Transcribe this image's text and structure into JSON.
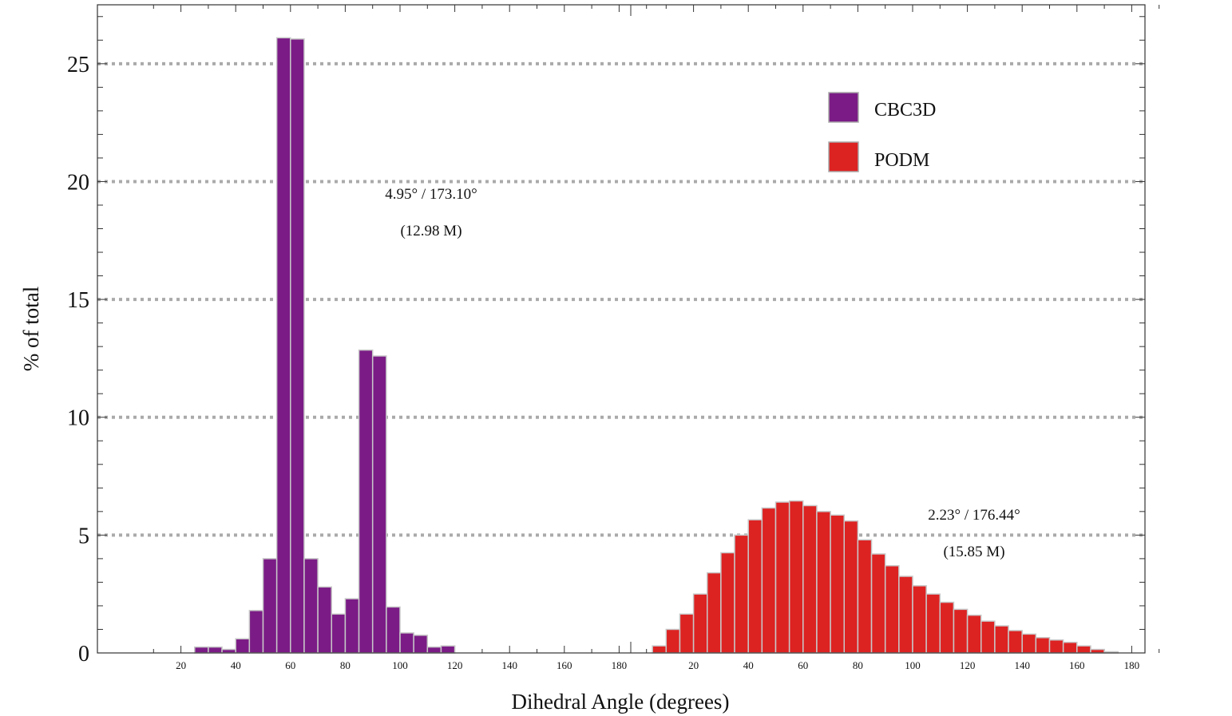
{
  "chart_data": {
    "type": "bar",
    "ylabel": "% of total",
    "xlabel": "Dihedral Angle (degrees)",
    "ylim": [
      0,
      27.5
    ],
    "yticks": [
      0,
      5,
      10,
      15,
      20,
      25
    ],
    "grid": "horizontal dotted",
    "legend_position": "top-right",
    "panels": [
      {
        "name": "CBC3D",
        "color": "#7b1c86",
        "x_ticks": [
          20,
          40,
          60,
          80,
          100,
          120,
          140,
          160,
          180
        ],
        "bin_width": 5,
        "bin_starts": [
          25,
          30,
          35,
          40,
          45,
          50,
          55,
          60,
          65,
          70,
          75,
          80,
          85,
          90,
          95,
          100,
          105,
          110,
          115
        ],
        "values": [
          0.25,
          0.25,
          0.15,
          0.6,
          1.8,
          4.0,
          26.1,
          26.05,
          4.0,
          2.8,
          1.65,
          2.3,
          12.85,
          12.6,
          1.95,
          0.85,
          0.75,
          0.25,
          0.3
        ],
        "annotation": [
          "4.95° / 173.10°",
          "(12.98 M)"
        ]
      },
      {
        "name": "PODM",
        "color": "#dd2222",
        "x_ticks": [
          20,
          40,
          60,
          80,
          100,
          120,
          140,
          160,
          180
        ],
        "bin_width": 5,
        "bin_starts": [
          5,
          10,
          15,
          20,
          25,
          30,
          35,
          40,
          45,
          50,
          55,
          60,
          65,
          70,
          75,
          80,
          85,
          90,
          95,
          100,
          105,
          110,
          115,
          120,
          125,
          130,
          135,
          140,
          145,
          150,
          155,
          160,
          165,
          170
        ],
        "values": [
          0.3,
          1.0,
          1.65,
          2.5,
          3.4,
          4.25,
          5.0,
          5.65,
          6.15,
          6.4,
          6.45,
          6.25,
          6.0,
          5.85,
          5.6,
          4.8,
          4.2,
          3.7,
          3.25,
          2.85,
          2.5,
          2.15,
          1.85,
          1.6,
          1.35,
          1.15,
          0.95,
          0.8,
          0.65,
          0.55,
          0.45,
          0.3,
          0.15,
          0.05
        ],
        "annotation": [
          "2.23° / 176.44°",
          "(15.85 M)"
        ]
      }
    ]
  }
}
